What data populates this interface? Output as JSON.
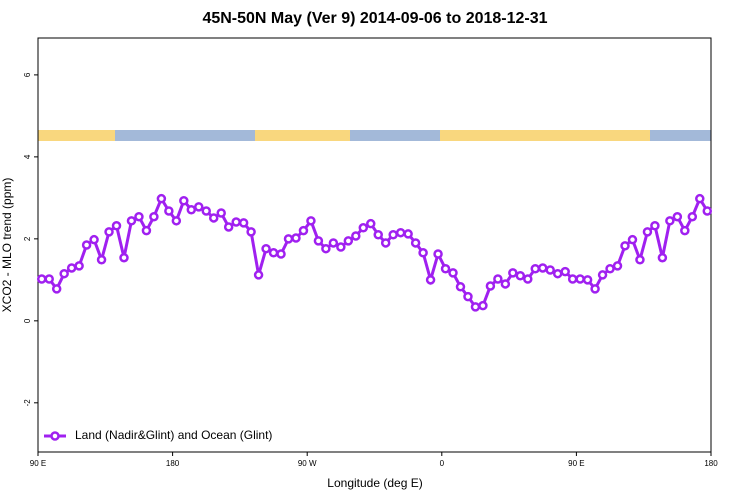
{
  "chart_data": {
    "type": "line",
    "title": "45N-50N May (Ver 9)   2014-09-06 to 2018-12-31",
    "x_label": "Longitude (deg E)",
    "y_label": "XCO2 - MLO trend (ppm)",
    "xlim": [
      90,
      540
    ],
    "ylim": [
      -3.2,
      6.9
    ],
    "xticks": [
      {
        "value": 90,
        "label": "90 E"
      },
      180,
      {
        "value": 270,
        "label": "90 W"
      },
      {
        "value": 360,
        "label": "0"
      },
      {
        "value": 450,
        "label": "90 E"
      },
      {
        "value": 540,
        "label": "180"
      }
    ],
    "yticks": [
      -2,
      0,
      2,
      4,
      6
    ],
    "legend": "bottom-left",
    "series": [
      {
        "name": "Land (Nadir&Glint) and Ocean (Glint)",
        "color": "#a020f0",
        "x": [
          92.5,
          97.5,
          102.5,
          107.5,
          112.5,
          117.5,
          122.5,
          127.5,
          132.5,
          137.5,
          142.5,
          147.5,
          152.5,
          157.5,
          162.5,
          167.5,
          172.5,
          177.5,
          182.5,
          187.5,
          192.5,
          197.5,
          202.5,
          207.5,
          212.5,
          217.5,
          222.5,
          227.5,
          232.5,
          237.5,
          242.5,
          247.5,
          252.5,
          257.5,
          262.5,
          267.5,
          272.5,
          277.5,
          282.5,
          287.5,
          292.5,
          297.5,
          302.5,
          307.5,
          312.5,
          317.5,
          322.5,
          327.5,
          332.5,
          337.5,
          342.5,
          347.5,
          352.5,
          357.5,
          362.5,
          367.5,
          372.5,
          377.5,
          382.5,
          387.5,
          392.5,
          397.5,
          402.5,
          407.5,
          412.5,
          417.5,
          422.5,
          427.5,
          432.5,
          437.5,
          442.5,
          447.5,
          452.5,
          457.5,
          462.5,
          467.5,
          472.5,
          477.5,
          482.5,
          487.5,
          492.5,
          497.5,
          502.5,
          507.5,
          512.5,
          517.5,
          522.5,
          527.5,
          532.5,
          537.5
        ],
        "values": [
          1.02,
          1.02,
          0.78,
          1.15,
          1.29,
          1.34,
          1.85,
          1.98,
          1.49,
          2.17,
          2.32,
          1.54,
          2.44,
          2.54,
          2.2,
          2.54,
          2.98,
          2.68,
          2.44,
          2.93,
          2.71,
          2.78,
          2.68,
          2.51,
          2.63,
          2.29,
          2.41,
          2.39,
          2.17,
          1.12,
          1.76,
          1.66,
          1.63,
          2.0,
          2.02,
          2.2,
          2.44,
          1.95,
          1.76,
          1.9,
          1.8,
          1.95,
          2.07,
          2.27,
          2.37,
          2.1,
          1.9,
          2.1,
          2.15,
          2.12,
          1.9,
          1.66,
          1.0,
          1.63,
          1.27,
          1.17,
          0.83,
          0.59,
          0.34,
          0.37,
          0.85,
          1.02,
          0.9,
          1.17,
          1.1,
          1.02,
          1.27,
          1.29,
          1.24,
          1.15,
          1.2,
          1.02,
          1.02,
          1.0,
          0.78,
          1.12,
          1.27,
          1.34,
          1.83,
          1.98,
          1.49,
          2.17,
          2.32,
          1.54,
          2.44,
          2.54,
          2.2,
          2.54,
          2.98,
          2.68
        ]
      }
    ]
  }
}
